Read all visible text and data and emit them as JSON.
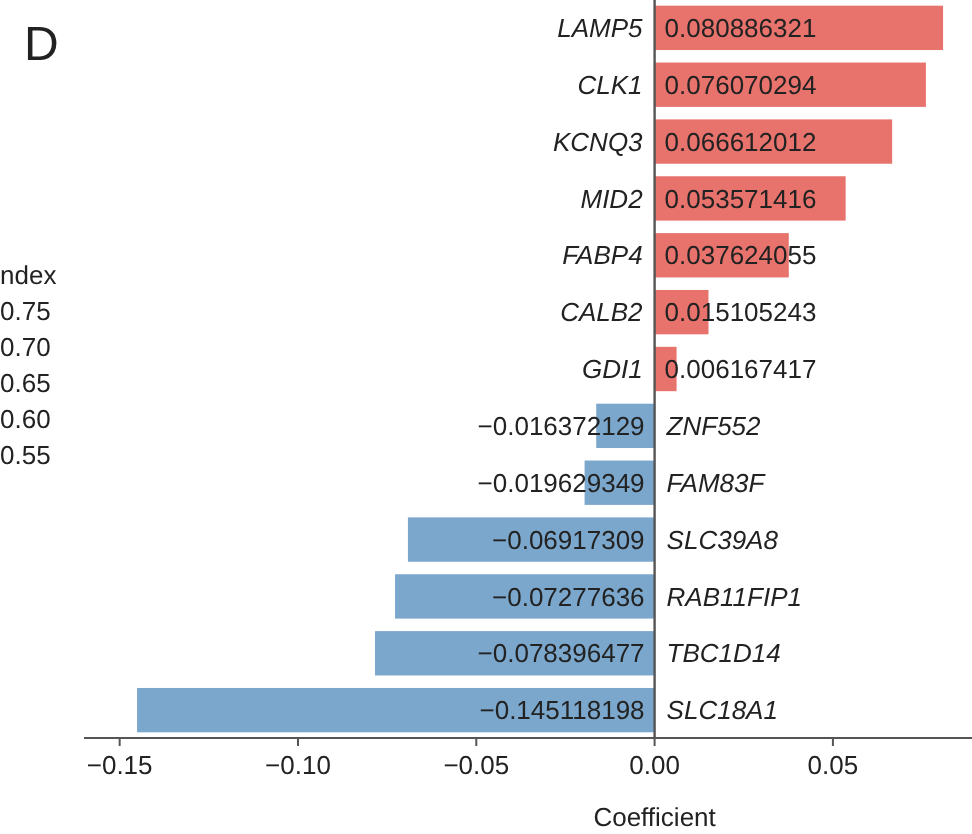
{
  "chart_data": {
    "type": "bar",
    "orientation": "horizontal",
    "title": "D",
    "xlabel": "Coefficient",
    "categories": [
      "LAMP5",
      "CLK1",
      "KCNQ3",
      "MID2",
      "FABP4",
      "CALB2",
      "GDI1",
      "ZNF552",
      "FAM83F",
      "SLC39A8",
      "RAB11FIP1",
      "TBC1D14",
      "SLC18A1"
    ],
    "values": [
      0.080886321,
      0.076070294,
      0.066612012,
      0.053571416,
      0.037624055,
      0.015105243,
      0.006167417,
      -0.016372129,
      -0.019629349,
      -0.06917309,
      -0.07277636,
      -0.078396477,
      -0.145118198
    ],
    "colors": [
      "#e8736c",
      "#e8736c",
      "#e8736c",
      "#e8736c",
      "#e8736c",
      "#e8736c",
      "#e8736c",
      "#7ba7cc",
      "#7ba7cc",
      "#7ba7cc",
      "#7ba7cc",
      "#7ba7cc",
      "#7ba7cc"
    ],
    "data_labels": true,
    "xlim": [
      -0.16,
      0.089
    ],
    "xticks": [
      {
        "value": -0.15,
        "label": "−0.15"
      },
      {
        "value": -0.1,
        "label": "−0.10"
      },
      {
        "value": -0.05,
        "label": "−0.05"
      },
      {
        "value": 0,
        "label": "0.00"
      },
      {
        "value": 0.05,
        "label": "0.05"
      }
    ],
    "annotations": [
      "ndex",
      "0.75",
      "0.70",
      "0.65",
      "0.60",
      "0.55"
    ]
  }
}
